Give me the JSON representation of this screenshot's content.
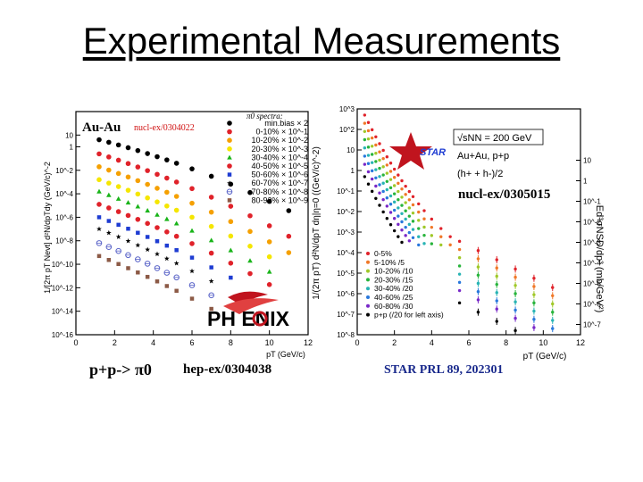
{
  "slide": {
    "title": "Experimental Measurements"
  },
  "chart_data": [
    {
      "type": "scatter",
      "title": "Au-Au",
      "reference": "nucl-ex/0304022",
      "legend_title": "π0 spectra:",
      "legend": [
        {
          "label": "min.bias × 2",
          "color": "#000000",
          "marker": "circle"
        },
        {
          "label": "0-10% × 10^-1",
          "color": "#e0222a",
          "marker": "circle"
        },
        {
          "label": "10-20% × 10^-2",
          "color": "#f5a000",
          "marker": "circle"
        },
        {
          "label": "20-30% × 10^-3",
          "color": "#f5e600",
          "marker": "circle"
        },
        {
          "label": "30-40% × 10^-4",
          "color": "#19b419",
          "marker": "triangle"
        },
        {
          "label": "40-50% × 10^-5",
          "color": "#e0222a",
          "marker": "circle"
        },
        {
          "label": "50-60% × 10^-6",
          "color": "#1e3cd2",
          "marker": "square"
        },
        {
          "label": "60-70% × 10^-7",
          "color": "#000000",
          "marker": "star"
        },
        {
          "label": "70-80% × 10^-8",
          "color": "#5a64c8",
          "marker": "open-cross"
        },
        {
          "label": "80-92% × 10^-9",
          "color": "#8c5a46",
          "marker": "square"
        }
      ],
      "ylabel": "1/[2π pT Nevt] d²N/dpTdy (GeV/c)^-2",
      "xlabel": "pT (GeV/c)",
      "xlim": [
        0,
        12
      ],
      "ylim": [
        -16,
        3
      ],
      "log_y": true,
      "x_ticks": [
        "0",
        "2",
        "4",
        "6",
        "8",
        "10",
        "12"
      ],
      "y_ticks": [
        "10",
        "1",
        "10^-2",
        "10^-4",
        "10^-6",
        "10^-8",
        "10^-10",
        "10^-12",
        "10^-14",
        "10^-16"
      ],
      "series": [
        {
          "offset": 0.6,
          "slope": -0.42,
          "color": "#000000",
          "marker": "circle"
        },
        {
          "offset": -0.6,
          "slope": -0.52,
          "color": "#e0222a",
          "marker": "circle"
        },
        {
          "offset": -1.7,
          "slope": -0.55,
          "color": "#f5a000",
          "marker": "circle"
        },
        {
          "offset": -2.8,
          "slope": -0.57,
          "color": "#f5e600",
          "marker": "circle"
        },
        {
          "offset": -3.8,
          "slope": -0.6,
          "color": "#19b419",
          "marker": "triangle"
        },
        {
          "offset": -4.9,
          "slope": -0.6,
          "color": "#e0222a",
          "marker": "circle"
        },
        {
          "offset": -6.0,
          "slope": -0.62,
          "color": "#1e3cd2",
          "marker": "square"
        },
        {
          "offset": -7.0,
          "slope": -0.65,
          "color": "#000000",
          "marker": "star"
        },
        {
          "offset": -8.2,
          "slope": -0.65,
          "color": "#5a64c8",
          "marker": "open-cross"
        },
        {
          "offset": -9.3,
          "slope": -0.66,
          "color": "#8c5a46",
          "marker": "square"
        }
      ],
      "x_points": [
        1.2,
        1.7,
        2.2,
        2.7,
        3.2,
        3.7,
        4.2,
        4.7,
        5.2,
        6.0,
        7.0,
        8.0,
        9.0,
        10.0,
        11.0
      ],
      "logo_text": "PH  ENIX",
      "bottom_text": "p+p-> π0",
      "bottom_reference": "hep-ex/0304038"
    },
    {
      "type": "scatter",
      "reference": "nucl-ex/0305015",
      "energy": "√sNN = 200 GeV",
      "system": "Au+Au, p+p",
      "particle": "(h+ + h-)/2",
      "logo_text": "STAR",
      "legend": [
        {
          "label": "0-5%",
          "color": "#e0222a"
        },
        {
          "label": "5-10% /5",
          "color": "#f07828"
        },
        {
          "label": "10-20% /10",
          "color": "#a0c828"
        },
        {
          "label": "20-30% /15",
          "color": "#28b43c"
        },
        {
          "label": "30-40% /20",
          "color": "#28b4b4"
        },
        {
          "label": "40-60% /25",
          "color": "#2878dc"
        },
        {
          "label": "60-80% /30",
          "color": "#7828c8"
        },
        {
          "label": "p+p (/20 for left axis)",
          "color": "#000000"
        }
      ],
      "ylabel_left": "1/(2π pT) d²N/dpT dη|η=0 ((GeV/c)^-2)",
      "ylabel_right": "Ed³σNSD/dp³ (mb/GeV²)",
      "xlabel": "pT (GeV/c)",
      "xlim": [
        0,
        12
      ],
      "ylim": [
        -8,
        3
      ],
      "log_y": true,
      "x_ticks": [
        "0",
        "2",
        "4",
        "6",
        "8",
        "10",
        "12"
      ],
      "y_ticks_left": [
        "10^3",
        "10^2",
        "10",
        "1",
        "10^-1",
        "10^-2",
        "10^-3",
        "10^-4",
        "10^-5",
        "10^-6",
        "10^-7",
        "10^-8"
      ],
      "y_ticks_right": [
        "10",
        "1",
        "10^-1",
        "10^-2",
        "10^-3",
        "10^-4",
        "10^-5",
        "10^-6",
        "10^-7"
      ],
      "series": [
        {
          "offset": 2.7,
          "slope": -1.15,
          "color": "#e0222a"
        },
        {
          "offset": 2.3,
          "slope": -1.15,
          "color": "#f07828"
        },
        {
          "offset": 1.9,
          "slope": -1.15,
          "color": "#a0c828"
        },
        {
          "offset": 1.5,
          "slope": -1.15,
          "color": "#28b43c"
        },
        {
          "offset": 1.1,
          "slope": -1.15,
          "color": "#28b4b4"
        },
        {
          "offset": 0.7,
          "slope": -1.15,
          "color": "#2878dc"
        },
        {
          "offset": 0.3,
          "slope": -1.15,
          "color": "#7828c8"
        },
        {
          "offset": -0.3,
          "slope": -1.15,
          "color": "#000000"
        }
      ],
      "x_points": [
        0.4,
        0.6,
        0.8,
        1.0,
        1.2,
        1.4,
        1.6,
        1.8,
        2.0,
        2.2,
        2.4,
        2.6,
        2.8,
        3.0,
        3.3,
        3.6,
        4.0,
        4.5,
        5.0,
        5.5,
        6.5,
        7.5,
        8.5,
        9.5,
        10.5
      ],
      "bottom_reference": "STAR PRL 89, 202301"
    }
  ]
}
